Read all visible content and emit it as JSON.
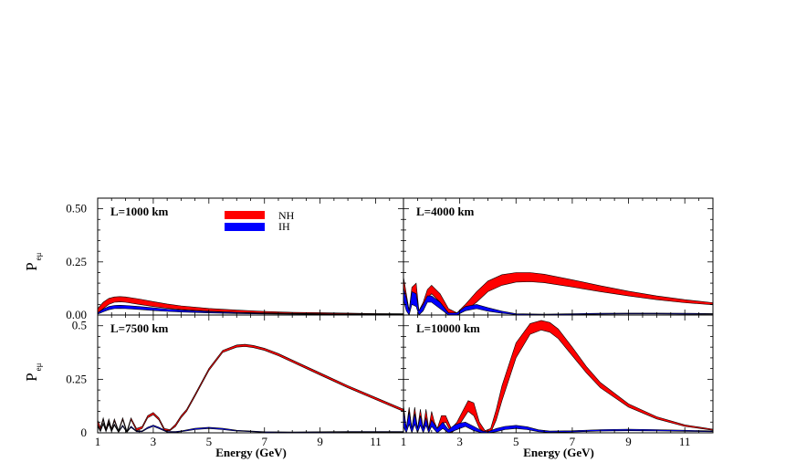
{
  "figure": {
    "xlabel": "Energy (GeV)",
    "ylabel": "P",
    "ylabel_sub": "eμ"
  },
  "legend": {
    "position": "top-left",
    "entries": [
      {
        "label": "NH",
        "color": "#ff0000"
      },
      {
        "label": "IH",
        "color": "#0000ff"
      }
    ]
  },
  "chart_data": [
    {
      "type": "area",
      "label": "L=1000 km",
      "xlim": [
        1,
        12
      ],
      "ylim": [
        0,
        0.55
      ],
      "yticks": [
        "0.00",
        "0.25",
        "0.50"
      ],
      "ytick_values": [
        0,
        0.25,
        0.5
      ],
      "xticks": [
        1,
        3,
        5,
        7,
        9,
        11
      ],
      "grid": false,
      "series": [
        {
          "name": "NH",
          "color": "#ff0000",
          "x": [
            1.0,
            1.2,
            1.4,
            1.6,
            1.8,
            2.0,
            2.5,
            3.0,
            3.5,
            4.0,
            5.0,
            6.0,
            7.0,
            8.0,
            9.0,
            10.0,
            11.0,
            12.0
          ],
          "low": [
            0.01,
            0.03,
            0.05,
            0.06,
            0.062,
            0.06,
            0.05,
            0.04,
            0.032,
            0.026,
            0.018,
            0.013,
            0.01,
            0.008,
            0.006,
            0.005,
            0.004,
            0.004
          ],
          "high": [
            0.03,
            0.06,
            0.078,
            0.085,
            0.087,
            0.085,
            0.075,
            0.063,
            0.052,
            0.043,
            0.031,
            0.023,
            0.017,
            0.013,
            0.011,
            0.009,
            0.007,
            0.006
          ]
        },
        {
          "name": "IH",
          "color": "#0000ff",
          "x": [
            1.0,
            1.2,
            1.4,
            1.6,
            1.8,
            2.0,
            2.5,
            3.0,
            3.5,
            4.0,
            5.0,
            6.0,
            7.0,
            8.0,
            9.0,
            10.0,
            11.0,
            12.0
          ],
          "low": [
            0.004,
            0.015,
            0.025,
            0.03,
            0.031,
            0.03,
            0.026,
            0.021,
            0.017,
            0.014,
            0.01,
            0.007,
            0.005,
            0.004,
            0.003,
            0.003,
            0.002,
            0.002
          ],
          "high": [
            0.01,
            0.028,
            0.04,
            0.045,
            0.046,
            0.045,
            0.04,
            0.034,
            0.028,
            0.023,
            0.016,
            0.011,
            0.008,
            0.006,
            0.005,
            0.004,
            0.003,
            0.003
          ]
        }
      ]
    },
    {
      "type": "area",
      "label": "L=4000 km",
      "xlim": [
        1,
        12
      ],
      "ylim": [
        0,
        0.55
      ],
      "yticks": [],
      "ytick_values": [],
      "xticks": [
        1,
        3,
        5,
        7,
        9,
        11
      ],
      "grid": false,
      "series": [
        {
          "name": "NH",
          "color": "#ff0000",
          "x": [
            1.0,
            1.1,
            1.2,
            1.3,
            1.45,
            1.55,
            1.7,
            1.85,
            2.0,
            2.3,
            2.6,
            2.9,
            3.2,
            3.6,
            4.0,
            4.5,
            5.0,
            5.5,
            6.0,
            7.0,
            8.0,
            9.0,
            10.0,
            11.0,
            12.0
          ],
          "low": [
            0.12,
            0.04,
            0.0,
            0.08,
            0.06,
            0.0,
            0.02,
            0.08,
            0.1,
            0.06,
            0.01,
            0.0,
            0.02,
            0.06,
            0.11,
            0.14,
            0.155,
            0.157,
            0.152,
            0.132,
            0.11,
            0.09,
            0.072,
            0.058,
            0.048
          ],
          "high": [
            0.18,
            0.1,
            0.02,
            0.13,
            0.15,
            0.02,
            0.06,
            0.12,
            0.14,
            0.1,
            0.03,
            0.01,
            0.05,
            0.11,
            0.16,
            0.19,
            0.2,
            0.2,
            0.192,
            0.166,
            0.138,
            0.112,
            0.09,
            0.072,
            0.058
          ]
        },
        {
          "name": "IH",
          "color": "#0000ff",
          "x": [
            1.0,
            1.1,
            1.2,
            1.3,
            1.45,
            1.55,
            1.7,
            1.85,
            2.0,
            2.3,
            2.6,
            2.9,
            3.2,
            3.6,
            4.0,
            4.5,
            5.0,
            6.0,
            7.0,
            8.0,
            9.0,
            10.0,
            11.0,
            12.0
          ],
          "low": [
            0.07,
            0.02,
            0.0,
            0.05,
            0.04,
            0.0,
            0.02,
            0.06,
            0.06,
            0.03,
            0.0,
            0.0,
            0.02,
            0.03,
            0.018,
            0.008,
            0.002,
            0.001,
            0.002,
            0.004,
            0.005,
            0.005,
            0.004,
            0.004
          ],
          "high": [
            0.13,
            0.08,
            0.02,
            0.11,
            0.1,
            0.02,
            0.05,
            0.09,
            0.09,
            0.06,
            0.01,
            0.01,
            0.04,
            0.05,
            0.035,
            0.018,
            0.006,
            0.004,
            0.006,
            0.008,
            0.009,
            0.009,
            0.008,
            0.007
          ]
        }
      ]
    },
    {
      "type": "area",
      "label": "L=7500 km",
      "xlim": [
        1,
        12
      ],
      "ylim": [
        0,
        0.55
      ],
      "yticks": [
        "0",
        "0.25",
        "0.5"
      ],
      "ytick_values": [
        0,
        0.25,
        0.5
      ],
      "xticks": [
        1,
        3,
        5,
        7,
        9,
        11
      ],
      "grid": false,
      "series": [
        {
          "name": "NH",
          "color": "#ff0000",
          "x": [
            1.0,
            1.1,
            1.2,
            1.3,
            1.4,
            1.5,
            1.6,
            1.75,
            1.9,
            2.05,
            2.2,
            2.4,
            2.6,
            2.8,
            3.0,
            3.2,
            3.4,
            3.6,
            3.8,
            4.0,
            4.2,
            4.5,
            5.0,
            5.5,
            6.0,
            6.3,
            6.6,
            7.0,
            7.5,
            8.0,
            9.0,
            10.0,
            11.0,
            12.0
          ],
          "low": [
            0.04,
            0.015,
            0.06,
            0.01,
            0.055,
            0.01,
            0.055,
            0.005,
            0.06,
            0.0,
            0.06,
            0.01,
            0.02,
            0.07,
            0.085,
            0.06,
            0.01,
            0.01,
            0.03,
            0.07,
            0.1,
            0.17,
            0.29,
            0.375,
            0.4,
            0.403,
            0.398,
            0.385,
            0.36,
            0.33,
            0.27,
            0.21,
            0.155,
            0.1
          ],
          "high": [
            0.06,
            0.025,
            0.07,
            0.02,
            0.065,
            0.02,
            0.065,
            0.012,
            0.07,
            0.008,
            0.07,
            0.02,
            0.03,
            0.08,
            0.095,
            0.07,
            0.02,
            0.015,
            0.04,
            0.08,
            0.11,
            0.18,
            0.3,
            0.385,
            0.41,
            0.413,
            0.408,
            0.395,
            0.37,
            0.34,
            0.28,
            0.22,
            0.165,
            0.11
          ]
        },
        {
          "name": "IH",
          "color": "#0000ff",
          "x": [
            1.0,
            1.1,
            1.2,
            1.3,
            1.4,
            1.5,
            1.6,
            1.75,
            1.9,
            2.05,
            2.2,
            2.4,
            2.6,
            2.8,
            3.0,
            3.2,
            3.5,
            3.8,
            4.0,
            4.5,
            5.0,
            5.5,
            6.0,
            7.0,
            8.0,
            9.0,
            10.0,
            11.0,
            12.0
          ],
          "low": [
            0.03,
            0.005,
            0.04,
            0.005,
            0.04,
            0.005,
            0.035,
            0.002,
            0.03,
            0.002,
            0.025,
            0.005,
            0.005,
            0.02,
            0.03,
            0.02,
            0.003,
            0.002,
            0.005,
            0.015,
            0.02,
            0.015,
            0.008,
            0.002,
            0.001,
            0.002,
            0.003,
            0.003,
            0.003
          ],
          "high": [
            0.036,
            0.009,
            0.046,
            0.009,
            0.046,
            0.009,
            0.041,
            0.006,
            0.036,
            0.006,
            0.031,
            0.009,
            0.009,
            0.026,
            0.036,
            0.026,
            0.007,
            0.006,
            0.009,
            0.021,
            0.026,
            0.021,
            0.012,
            0.005,
            0.004,
            0.005,
            0.006,
            0.006,
            0.006
          ]
        }
      ]
    },
    {
      "type": "area",
      "label": "L=10000 km",
      "xlim": [
        1,
        12
      ],
      "ylim": [
        0,
        0.55
      ],
      "yticks": [],
      "ytick_values": [],
      "xticks": [
        1,
        3,
        5,
        7,
        9,
        11
      ],
      "grid": false,
      "series": [
        {
          "name": "NH",
          "color": "#ff0000",
          "x": [
            1.0,
            1.1,
            1.2,
            1.3,
            1.4,
            1.5,
            1.6,
            1.7,
            1.8,
            1.9,
            2.0,
            2.1,
            2.2,
            2.35,
            2.5,
            2.7,
            2.9,
            3.1,
            3.3,
            3.5,
            3.7,
            3.9,
            4.1,
            4.3,
            4.5,
            5.0,
            5.5,
            5.9,
            6.2,
            6.5,
            7.0,
            7.5,
            8.0,
            9.0,
            10.0,
            11.0,
            12.0
          ],
          "low": [
            0.05,
            0.0,
            0.06,
            0.0,
            0.06,
            0.0,
            0.055,
            0.0,
            0.06,
            0.0,
            0.05,
            0.02,
            0.0,
            0.04,
            0.05,
            0.0,
            0.02,
            0.06,
            0.1,
            0.08,
            0.02,
            0.0,
            0.0,
            0.06,
            0.15,
            0.35,
            0.46,
            0.48,
            0.47,
            0.44,
            0.36,
            0.28,
            0.21,
            0.12,
            0.065,
            0.03,
            0.012
          ],
          "high": [
            0.13,
            0.02,
            0.12,
            0.02,
            0.12,
            0.02,
            0.11,
            0.02,
            0.11,
            0.02,
            0.1,
            0.05,
            0.02,
            0.08,
            0.08,
            0.02,
            0.05,
            0.1,
            0.15,
            0.14,
            0.05,
            0.01,
            0.02,
            0.11,
            0.22,
            0.42,
            0.51,
            0.525,
            0.515,
            0.485,
            0.4,
            0.31,
            0.235,
            0.135,
            0.075,
            0.037,
            0.017
          ]
        },
        {
          "name": "IH",
          "color": "#0000ff",
          "x": [
            1.0,
            1.1,
            1.2,
            1.3,
            1.4,
            1.5,
            1.6,
            1.7,
            1.8,
            1.9,
            2.0,
            2.2,
            2.4,
            2.6,
            2.8,
            3.0,
            3.2,
            3.5,
            3.8,
            4.0,
            4.3,
            4.6,
            5.0,
            5.4,
            5.8,
            6.2,
            7.0,
            8.0,
            9.0,
            10.0,
            11.0,
            12.0
          ],
          "low": [
            0.03,
            0.0,
            0.04,
            0.0,
            0.04,
            0.0,
            0.035,
            0.0,
            0.035,
            0.0,
            0.03,
            0.0,
            0.02,
            0.0,
            0.01,
            0.02,
            0.03,
            0.01,
            0.0,
            0.0,
            0.005,
            0.015,
            0.02,
            0.015,
            0.005,
            0.002,
            0.004,
            0.008,
            0.01,
            0.009,
            0.007,
            0.005
          ],
          "high": [
            0.11,
            0.02,
            0.1,
            0.02,
            0.09,
            0.02,
            0.08,
            0.02,
            0.07,
            0.015,
            0.06,
            0.02,
            0.05,
            0.015,
            0.035,
            0.045,
            0.05,
            0.03,
            0.008,
            0.005,
            0.02,
            0.03,
            0.035,
            0.028,
            0.014,
            0.008,
            0.01,
            0.015,
            0.017,
            0.015,
            0.012,
            0.009
          ]
        }
      ]
    }
  ]
}
